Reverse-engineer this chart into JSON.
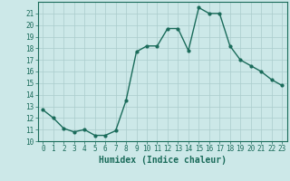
{
  "x": [
    0,
    1,
    2,
    3,
    4,
    5,
    6,
    7,
    8,
    9,
    10,
    11,
    12,
    13,
    14,
    15,
    16,
    17,
    18,
    19,
    20,
    21,
    22,
    23
  ],
  "y": [
    12.7,
    12.0,
    11.1,
    10.8,
    11.0,
    10.5,
    10.5,
    10.9,
    13.5,
    17.7,
    18.2,
    18.2,
    19.7,
    19.7,
    17.8,
    21.5,
    21.0,
    21.0,
    18.2,
    17.0,
    16.5,
    16.0,
    15.3,
    14.8
  ],
  "line_color": "#1a6b5a",
  "marker": "o",
  "markersize": 2.0,
  "linewidth": 1.0,
  "bg_color": "#cce8e8",
  "grid_color": "#aacccc",
  "xlabel": "Humidex (Indice chaleur)",
  "ylabel": "",
  "xlim": [
    -0.5,
    23.5
  ],
  "ylim": [
    10,
    22
  ],
  "yticks": [
    10,
    11,
    12,
    13,
    14,
    15,
    16,
    17,
    18,
    19,
    20,
    21
  ],
  "xticks": [
    0,
    1,
    2,
    3,
    4,
    5,
    6,
    7,
    8,
    9,
    10,
    11,
    12,
    13,
    14,
    15,
    16,
    17,
    18,
    19,
    20,
    21,
    22,
    23
  ],
  "tick_fontsize": 5.5,
  "xlabel_fontsize": 7.0,
  "tick_color": "#1a6b5a",
  "spine_color": "#1a6b5a"
}
